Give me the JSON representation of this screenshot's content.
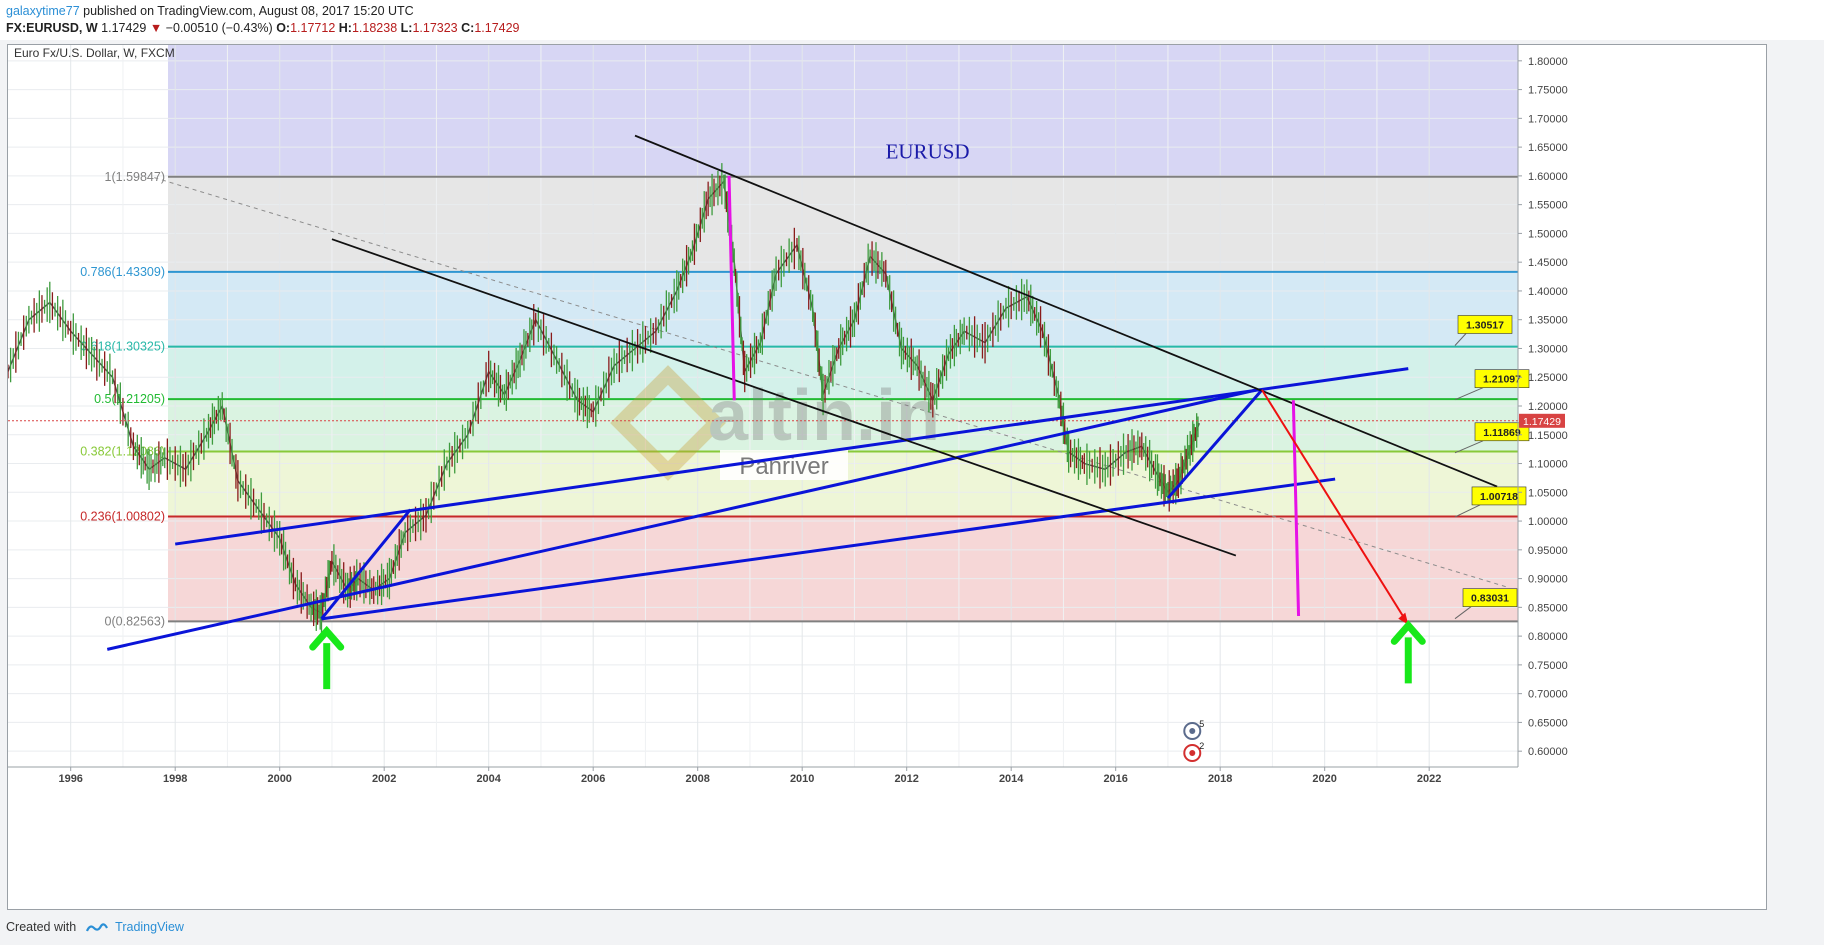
{
  "header": {
    "user": "galaxytime77",
    "published_text": "published on TradingView.com, August 08, 2017 15:20 UTC",
    "symbol": "FX:EURUSD, W",
    "last": "1.17429",
    "change": "−0.00510 (−0.43%)",
    "o_label": "O:",
    "o": "1.17712",
    "h_label": "H:",
    "h": "1.18238",
    "l_label": "L:",
    "l": "1.17323",
    "c_label": "C:",
    "c": "1.17429"
  },
  "footer": {
    "created_with": "Created with",
    "brand": "TradingView"
  },
  "colors": {
    "up_arrow": "#18e81a",
    "trend_blue": "#0a14d8",
    "trend_black": "#111111",
    "magenta": "#e612e6",
    "projection_red": "#ee1111",
    "price_label": "#d84343",
    "callout_yellow": "#ffff00"
  },
  "chart_data": {
    "type": "line",
    "title": "Euro Fx/U.S. Dollar, W, FXCM",
    "symbol": "EURUSD",
    "watermark": "altin.in",
    "watermark_sub": "Panriver",
    "xlabel": "",
    "ylabel": "",
    "xlim": [
      1994.8,
      2023.7
    ],
    "ylim": [
      0.5725,
      1.8275
    ],
    "grid": true,
    "x_ticks": [
      "1996",
      "1998",
      "2000",
      "2002",
      "2004",
      "2006",
      "2008",
      "2010",
      "2012",
      "2014",
      "2016",
      "2018",
      "2020",
      "2022"
    ],
    "y_ticks": [
      "0.60000",
      "0.65000",
      "0.70000",
      "0.75000",
      "0.80000",
      "0.85000",
      "0.90000",
      "0.95000",
      "1.00000",
      "1.05000",
      "1.10000",
      "1.15000",
      "1.20000",
      "1.25000",
      "1.30000",
      "1.35000",
      "1.40000",
      "1.45000",
      "1.50000",
      "1.55000",
      "1.60000",
      "1.65000",
      "1.70000",
      "1.75000",
      "1.80000"
    ],
    "current_price": "1.17429",
    "series": [
      {
        "x": [
          1994.8,
          1995.2,
          1995.6,
          1996.0,
          1996.4,
          1996.8,
          1997.2,
          1997.5,
          1997.8,
          1998.2,
          1998.6,
          1998.9,
          1999.2,
          1999.6,
          2000.0,
          2000.3,
          2000.6,
          2000.8,
          2001.0,
          2001.3,
          2001.5,
          2001.8,
          2002.1,
          2002.4,
          2002.8,
          2003.2,
          2003.6,
          2004.0,
          2004.3,
          2004.6,
          2004.9,
          2005.3,
          2005.7,
          2006.0,
          2006.4,
          2006.8,
          2007.2,
          2007.6,
          2007.9,
          2008.2,
          2008.5,
          2008.7,
          2008.9,
          2009.2,
          2009.5,
          2009.9,
          2010.2,
          2010.4,
          2010.7,
          2011.0,
          2011.3,
          2011.6,
          2011.9,
          2012.2,
          2012.5,
          2012.8,
          2013.1,
          2013.5,
          2013.9,
          2014.3,
          2014.6,
          2014.9,
          2015.1,
          2015.4,
          2015.8,
          2016.2,
          2016.5,
          2016.8,
          2017.0,
          2017.2,
          2017.4,
          2017.6
        ],
        "y": [
          1.26,
          1.35,
          1.38,
          1.33,
          1.29,
          1.25,
          1.13,
          1.09,
          1.11,
          1.09,
          1.15,
          1.2,
          1.07,
          1.02,
          0.97,
          0.89,
          0.85,
          0.84,
          0.93,
          0.88,
          0.9,
          0.88,
          0.9,
          0.98,
          1.01,
          1.1,
          1.15,
          1.26,
          1.22,
          1.28,
          1.35,
          1.28,
          1.21,
          1.19,
          1.27,
          1.3,
          1.33,
          1.4,
          1.47,
          1.56,
          1.59,
          1.45,
          1.26,
          1.31,
          1.43,
          1.48,
          1.37,
          1.22,
          1.3,
          1.35,
          1.46,
          1.43,
          1.3,
          1.27,
          1.21,
          1.29,
          1.33,
          1.31,
          1.37,
          1.39,
          1.33,
          1.22,
          1.12,
          1.1,
          1.09,
          1.12,
          1.13,
          1.08,
          1.05,
          1.07,
          1.12,
          1.17
        ]
      }
    ],
    "fib_levels": [
      {
        "label": "1(1.59847)",
        "value": 1.59847,
        "color": "#808080"
      },
      {
        "label": "0.786(1.43309)",
        "value": 1.43309,
        "color": "#2e96d1"
      },
      {
        "label": "0.618(1.30325)",
        "value": 1.30325,
        "color": "#29b8a8"
      },
      {
        "label": "0.5(1.21205)",
        "value": 1.21205,
        "color": "#22bb33"
      },
      {
        "label": "0.382(1.12086)",
        "value": 1.12086,
        "color": "#88c938"
      },
      {
        "label": "0.236(1.00802)",
        "value": 1.00802,
        "color": "#c62828"
      },
      {
        "label": "0(0.82563)",
        "value": 0.82563,
        "color": "#808080"
      }
    ],
    "fib_extension_level": 1.8275,
    "callouts": [
      {
        "text": "1.30517",
        "value": 1.30517
      },
      {
        "text": "1.21097",
        "value": 1.21097
      },
      {
        "text": "1.11869",
        "value": 1.11869
      },
      {
        "text": "1.00718",
        "value": 1.00718
      },
      {
        "text": "0.83031",
        "value": 0.83031
      }
    ],
    "trend_lines": [
      {
        "color": "blue",
        "x": [
          1996.7,
          2018.7
        ],
        "y": [
          0.777,
          1.228
        ]
      },
      {
        "color": "blue",
        "x": [
          1998.0,
          2021.6
        ],
        "y": [
          0.96,
          1.265
        ]
      },
      {
        "color": "blue",
        "x": [
          2000.8,
          2020.2
        ],
        "y": [
          0.83,
          1.073
        ]
      },
      {
        "color": "blue",
        "x": [
          2000.8,
          2002.5
        ],
        "y": [
          0.83,
          1.02
        ]
      },
      {
        "color": "blue",
        "x": [
          2017.0,
          2018.8
        ],
        "y": [
          1.04,
          1.228
        ]
      },
      {
        "color": "black",
        "x": [
          2001.0,
          2018.3
        ],
        "y": [
          1.49,
          0.94
        ]
      },
      {
        "color": "black",
        "x": [
          2006.8,
          2023.3
        ],
        "y": [
          1.67,
          1.06
        ]
      },
      {
        "color": "magenta",
        "x": [
          2008.6,
          2008.7
        ],
        "y": [
          1.6,
          1.21
        ]
      },
      {
        "color": "magenta",
        "x": [
          2019.4,
          2019.5
        ],
        "y": [
          1.21,
          0.835
        ]
      },
      {
        "color": "red",
        "x": [
          2018.8,
          2021.6
        ],
        "y": [
          1.228,
          0.82
        ]
      }
    ],
    "arrows_up": [
      {
        "x": 2000.9,
        "y": 0.76
      },
      {
        "x": 2021.6,
        "y": 0.77
      }
    ],
    "event_markers": [
      {
        "x": 2017.6,
        "count": "5"
      },
      {
        "x": 2017.6,
        "count": "2"
      }
    ]
  }
}
